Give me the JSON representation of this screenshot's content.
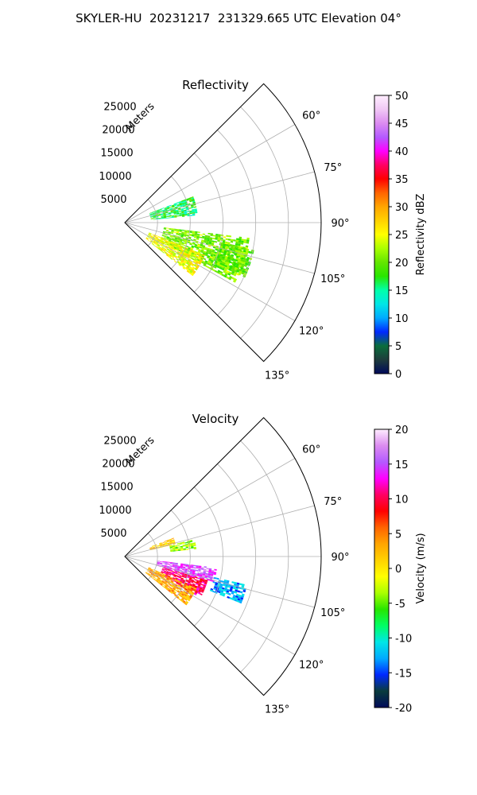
{
  "figure_title": "SKYLER-HU  20231217  231329.665 UTC Elevation 04°",
  "colors": {
    "reflectivity_stops": [
      "#000a5a",
      "#1e3c3c",
      "#0a6e3c",
      "#0028ff",
      "#00aaff",
      "#00e6e6",
      "#00ffaa",
      "#28e600",
      "#64e600",
      "#aaff00",
      "#ffff00",
      "#ffd200",
      "#ffa500",
      "#ff6400",
      "#ff0000",
      "#ff0064",
      "#ff00ff",
      "#b45aff",
      "#dc8cf0",
      "#f0c8f5",
      "#ffeeff"
    ],
    "velocity_stops": [
      "#000a5a",
      "#0a3c3c",
      "#0028ff",
      "#00aaff",
      "#00e6e6",
      "#00ff64",
      "#28e600",
      "#aaff00",
      "#ffff00",
      "#ffd200",
      "#ffa500",
      "#ff6400",
      "#ff0000",
      "#ff0064",
      "#ff00ff",
      "#b45aff",
      "#dc8cf0",
      "#ffeeff"
    ]
  },
  "chart_data": [
    {
      "type": "heatmap",
      "title": "Reflectivity",
      "projection": "polar-sector",
      "radial_label": "Meters",
      "radial_ticks": [
        "5000",
        "10000",
        "15000",
        "20000",
        "25000"
      ],
      "radial_tick_values": [
        5000,
        10000,
        15000,
        20000,
        25000
      ],
      "rlim": [
        0,
        30000
      ],
      "angle_ticks": [
        "60°",
        "75°",
        "90°",
        "105°",
        "120°",
        "135°"
      ],
      "angle_tick_values": [
        60,
        75,
        90,
        105,
        120,
        135
      ],
      "theta_range_deg": [
        45,
        135
      ],
      "grid": true,
      "colorbar": {
        "label": "Reflectivity dBZ",
        "range": [
          0,
          50
        ],
        "ticks": [
          "0",
          "5",
          "10",
          "15",
          "20",
          "25",
          "30",
          "35",
          "40",
          "45",
          "50"
        ],
        "tick_values": [
          0,
          5,
          10,
          15,
          20,
          25,
          30,
          35,
          40,
          45,
          50
        ]
      },
      "echo_regions": [
        {
          "az": [
            69,
            84
          ],
          "range_m": [
            4000,
            11000
          ],
          "value_dbz": 17
        },
        {
          "az": [
            97,
            118
          ],
          "range_m": [
            6000,
            19000
          ],
          "value_dbz": 21
        },
        {
          "az": [
            112,
            128
          ],
          "range_m": [
            4000,
            13000
          ],
          "value_dbz": 25
        },
        {
          "az": [
            102,
            114
          ],
          "range_m": [
            15000,
            20000
          ],
          "value_dbz": 20
        }
      ]
    },
    {
      "type": "heatmap",
      "title": "Velocity",
      "projection": "polar-sector",
      "radial_label": "Meters",
      "radial_ticks": [
        "5000",
        "10000",
        "15000",
        "20000",
        "25000"
      ],
      "radial_tick_values": [
        5000,
        10000,
        15000,
        20000,
        25000
      ],
      "rlim": [
        0,
        30000
      ],
      "angle_ticks": [
        "60°",
        "75°",
        "90°",
        "105°",
        "120°",
        "135°"
      ],
      "angle_tick_values": [
        60,
        75,
        90,
        105,
        120,
        135
      ],
      "theta_range_deg": [
        45,
        135
      ],
      "grid": true,
      "colorbar": {
        "label": "Velocity (m/s)",
        "range": [
          -20,
          20
        ],
        "ticks": [
          "-20",
          "-15",
          "-10",
          "-5",
          "0",
          "5",
          "10",
          "15",
          "20"
        ],
        "tick_values": [
          -20,
          -15,
          -10,
          -5,
          0,
          5,
          10,
          15,
          20
        ]
      },
      "echo_regions": [
        {
          "az": [
            69,
            76
          ],
          "range_m": [
            4000,
            8000
          ],
          "value_ms": 2
        },
        {
          "az": [
            76,
            84
          ],
          "range_m": [
            7000,
            11000
          ],
          "value_ms": -4
        },
        {
          "az": [
            97,
            106
          ],
          "range_m": [
            5000,
            14000
          ],
          "value_ms": 14
        },
        {
          "az": [
            103,
            112
          ],
          "range_m": [
            14000,
            19000
          ],
          "value_ms": -12
        },
        {
          "az": [
            106,
            118
          ],
          "range_m": [
            6000,
            13000
          ],
          "value_ms": 10
        },
        {
          "az": [
            114,
            128
          ],
          "range_m": [
            4000,
            12000
          ],
          "value_ms": 3
        }
      ]
    }
  ]
}
